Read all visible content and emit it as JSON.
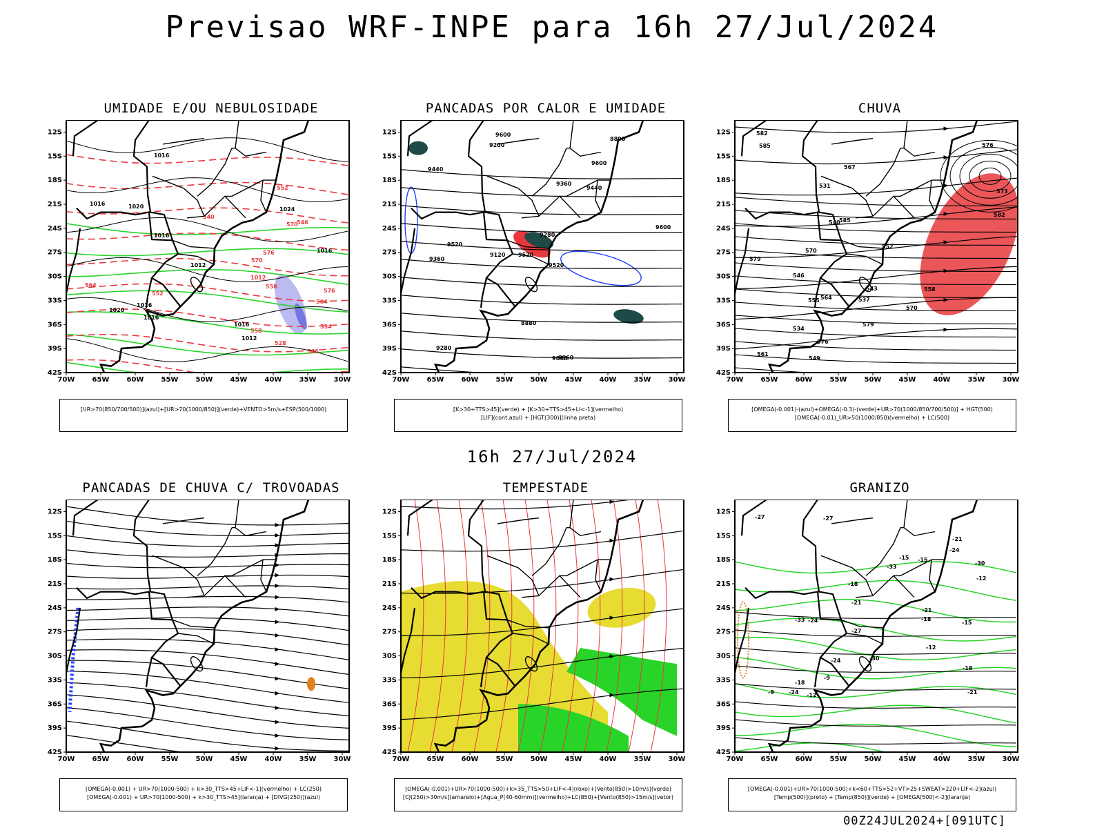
{
  "header": {
    "title": "Previsao WRF-INPE  para 16h 27/Jul/2024"
  },
  "mid_date": "16h 27/Jul/2024",
  "footer": "00Z24JUL2024+[091UTC]",
  "axes": {
    "lat_ticks": [
      "12S",
      "15S",
      "18S",
      "21S",
      "24S",
      "27S",
      "30S",
      "33S",
      "36S",
      "39S",
      "42S"
    ],
    "lon_ticks": [
      "70W",
      "65W",
      "60W",
      "55W",
      "50W",
      "45W",
      "40W",
      "35W",
      "30W"
    ]
  },
  "colors": {
    "red": "#e8383c",
    "green": "#28d428",
    "blue": "#2040ff",
    "yellow": "#e6dc32",
    "darkteal": "#1e4a48",
    "orange": "#e08020",
    "lavender": "#b4b4f0"
  },
  "panels": [
    {
      "title": "UMIDADE E/OU NEBULOSIDADE",
      "legend": [
        "[UR>70(850/700/500)](azul)+[UR>70(1000/850)](verde)+VENTO>5m/s+ESP(500/1000)"
      ],
      "labels": [
        "1012",
        "1016",
        "1016",
        "1020",
        "1024",
        "1016",
        "1016",
        "1016",
        "1012",
        "1016",
        "1020",
        "1016",
        "1012",
        "576",
        "570",
        "564",
        "558",
        "552",
        "546",
        "540",
        "534",
        "528",
        "576",
        "570",
        "564",
        "558",
        "552",
        "546"
      ]
    },
    {
      "title": "PANCADAS POR CALOR E UMIDADE",
      "legend": [
        "[K>30+TTS>45](verde) + [K>30+TTS>45+LI<-1](vermelho)",
        "[LIF](cont.azul) + [HGT(300)](linha preta)"
      ],
      "labels": [
        "9600",
        "9600",
        "9600",
        "9520",
        "9520",
        "9520",
        "9440",
        "9440",
        "9360",
        "9360",
        "9280",
        "9280",
        "9200",
        "9120",
        "9040",
        "8960",
        "8880",
        "8800"
      ]
    },
    {
      "title": "CHUVA",
      "legend": [
        "[OMEGA(-0.001)-(azul)+OMEGA(-0.3)-(verde)+UR>70(1000/850/700/500)] + HGT(500)",
        "[OMEGA(-0.01)_UR>50(1000/850)(vermelho) + LC(500)"
      ],
      "labels": [
        "585",
        "582",
        "579",
        "576",
        "573",
        "570",
        "567",
        "564",
        "561",
        "558",
        "555",
        "552",
        "549",
        "546",
        "543",
        "540",
        "537",
        "534",
        "531",
        "585",
        "582",
        "579",
        "576",
        "570"
      ]
    },
    {
      "title": "PANCADAS DE CHUVA C/ TROVOADAS",
      "legend": [
        "[OMEGA(-0.001) + UR>70(1000-500) + k>30_TTS>45+LIF<-1](vermelho) + LC(250)",
        "[OMEGA(-0.001) + UR>70(1000-500) + k>30_TTS>45](laranja) + [DIVG(250)](azul)"
      ],
      "labels": []
    },
    {
      "title": "TEMPESTADE",
      "legend": [
        "[OMEGA(-0.001)+UR>70(1000-500)+k>35_TTS>50+LIF<-4](roxo)+[Vento(850)>10m/s](verde)",
        "[CJ(250)>30m/s](amarelo)+[Agua_P(40-60mm)](vermelho)+LC(850)+[Vento(850)>15m/s](vetor)"
      ],
      "labels": []
    },
    {
      "title": "GRANIZO",
      "legend": [
        "[OMEGA(-0.001)+UR>70(1000-500)+k<60+TTS>52+VT>25+SWEAT>220+LIF<-2](azul)",
        "[Temp(500)](preto) + [Temp(850)](verde) + [OMEGA(500)<-2](laranja)"
      ],
      "labels": [
        "-9",
        "-12",
        "-15",
        "-18",
        "-21",
        "-24",
        "-27",
        "-30",
        "-33",
        "-12",
        "-15",
        "-18",
        "-21",
        "-24",
        "-27",
        "-18",
        "-24",
        "-21",
        "-9",
        "-12",
        "-15",
        "-18",
        "-21",
        "-24",
        "-27",
        "-30",
        "-33"
      ]
    }
  ]
}
